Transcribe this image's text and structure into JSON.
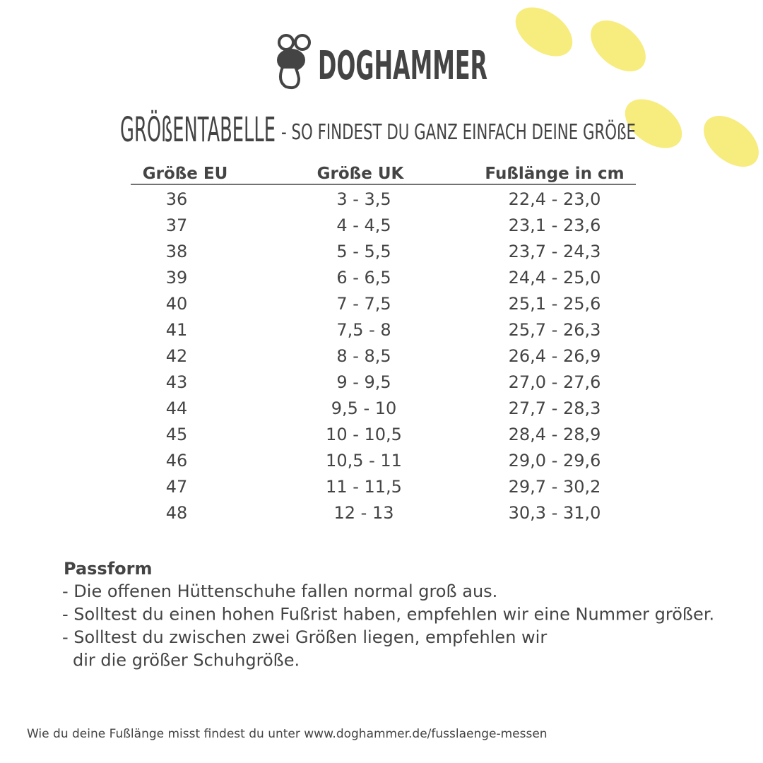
{
  "logo": {
    "text": "DOGHAMMER"
  },
  "header": {
    "title": "GRÖßENTABELLE",
    "subtitle": "- SO FINDEST DU GANZ EINFACH DEINE GRÖßE"
  },
  "table": {
    "columns": [
      "Größe EU",
      "Größe UK",
      "Fußlänge in cm"
    ],
    "rows": [
      [
        "36",
        "3 - 3,5",
        "22,4 - 23,0"
      ],
      [
        "37",
        "4 - 4,5",
        "23,1 - 23,6"
      ],
      [
        "38",
        "5 - 5,5",
        "23,7 - 24,3"
      ],
      [
        "39",
        "6 - 6,5",
        "24,4 - 25,0"
      ],
      [
        "40",
        "7 - 7,5",
        "25,1 - 25,6"
      ],
      [
        "41",
        "7,5 - 8",
        "25,7 - 26,3"
      ],
      [
        "42",
        "8 - 8,5",
        "26,4 - 26,9"
      ],
      [
        "43",
        "9 - 9,5",
        "27,0 - 27,6"
      ],
      [
        "44",
        "9,5 - 10",
        "27,7 - 28,3"
      ],
      [
        "45",
        "10 - 10,5",
        "28,4 - 28,9"
      ],
      [
        "46",
        "10,5 - 11",
        "29,0 - 29,6"
      ],
      [
        "47",
        "11 - 11,5",
        "29,7 - 30,2"
      ],
      [
        "48",
        "12 - 13",
        "30,3 - 31,0"
      ]
    ]
  },
  "fit": {
    "heading": "Passform",
    "lines": [
      "- Die offenen Hüttenschuhe fallen normal groß aus.",
      "- Solltest du einen hohen Fußrist haben, empfehlen wir eine Nummer größer.",
      "- Solltest du zwischen zwei Größen liegen, empfehlen wir",
      "dir die größer Schuhgröße."
    ]
  },
  "footer": {
    "text": "Wie du deine Fußlänge misst findest du unter www.doghammer.de/fusslaenge-messen"
  }
}
